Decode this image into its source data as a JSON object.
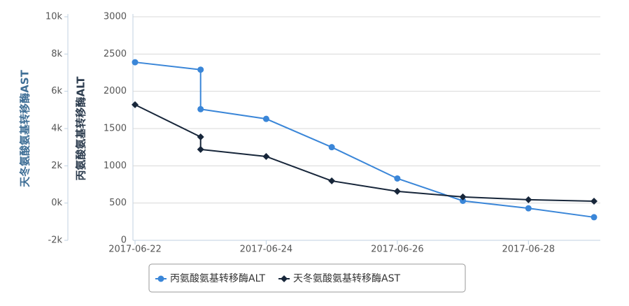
{
  "chart_data": {
    "type": "line",
    "x": [
      "2017-06-22",
      "2017-06-23",
      "2017-06-23",
      "2017-06-24",
      "2017-06-25",
      "2017-06-26",
      "2017-06-27",
      "2017-06-28",
      "2017-06-29"
    ],
    "xlim": [
      "2017-06-22",
      "2017-06-29"
    ],
    "xticks": [
      "2017-06-22",
      "2017-06-24",
      "2017-06-26",
      "2017-06-28"
    ],
    "ylabel": "丙氨酸氨基转移酶ALT",
    "ylim": [
      0,
      3000
    ],
    "yticks": [
      0,
      500,
      1000,
      1500,
      2000,
      2500,
      3000
    ],
    "y2label": "天冬氨酸氨基转移酶AST",
    "y2lim": [
      -2000,
      10000
    ],
    "y2ticks": [
      {
        "value": -2000,
        "label": "-2k"
      },
      {
        "value": 0,
        "label": "0k"
      },
      {
        "value": 2000,
        "label": "2k"
      },
      {
        "value": 4000,
        "label": "4k"
      },
      {
        "value": 6000,
        "label": "6k"
      },
      {
        "value": 8000,
        "label": "8k"
      },
      {
        "value": 10000,
        "label": "10k"
      }
    ],
    "grid": true,
    "legend": "bottom",
    "series": [
      {
        "name": "丙氨酸氨基转移酶ALT",
        "color": "#3a86d8",
        "marker": "circle",
        "values": [
          2390,
          2290,
          1760,
          1630,
          1250,
          830,
          530,
          430,
          310
        ]
      },
      {
        "name": "天冬氨酸氨基转移酶AST",
        "color": "#17263a",
        "marker": "diamond",
        "axis": "y2",
        "values": [
          5280,
          3550,
          2880,
          2500,
          1190,
          630,
          330,
          180,
          100
        ]
      }
    ]
  }
}
